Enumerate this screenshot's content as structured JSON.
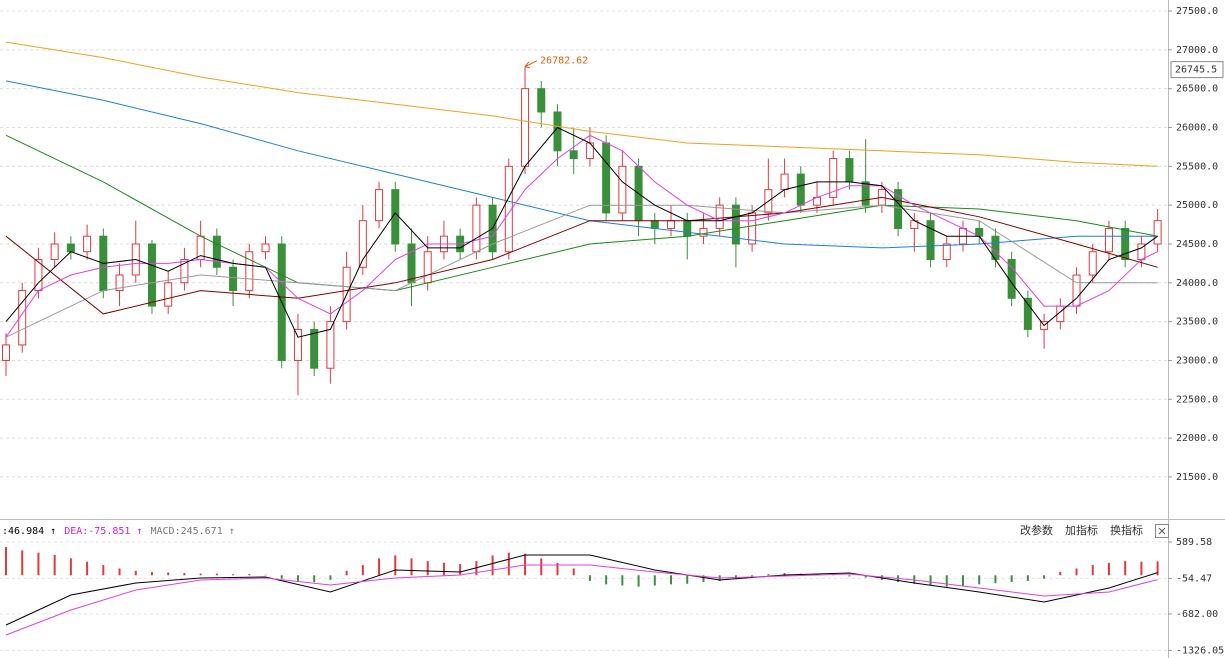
{
  "chart_data": [
    {
      "type": "candlestick",
      "ylim": [
        20971,
        27642
      ],
      "yticks": [
        {
          "value": 27500,
          "label": "27500.0"
        },
        {
          "value": 27000,
          "label": "27000.0"
        },
        {
          "value": 26500,
          "label": "26500.0"
        },
        {
          "value": 26000,
          "label": "26000.0"
        },
        {
          "value": 25500,
          "label": "25500.0"
        },
        {
          "value": 25000,
          "label": "25000.0"
        },
        {
          "value": 24500,
          "label": "24500.0"
        },
        {
          "value": 24000,
          "label": "24000.0"
        },
        {
          "value": 23500,
          "label": "23500.0"
        },
        {
          "value": 23000,
          "label": "23000.0"
        },
        {
          "value": 22500,
          "label": "22500.0"
        },
        {
          "value": 22000,
          "label": "22000.0"
        },
        {
          "value": 21500,
          "label": "21500.0"
        }
      ],
      "grid": true,
      "up_color": "#e0393e",
      "down_color": "#3a8f3a",
      "open": [
        23000,
        23200,
        23900,
        24300,
        24500,
        24400,
        24600,
        23900,
        24100,
        24500,
        23700,
        24000,
        24300,
        24600,
        24200,
        23900,
        24400,
        24500,
        23000,
        23400,
        22900,
        23500,
        24200,
        24800,
        25200,
        24500,
        24000,
        24400,
        24600,
        24400,
        25000,
        24400,
        25500,
        26500,
        26200,
        25700,
        25600,
        25800,
        24900,
        25500,
        24800,
        24700,
        24800,
        24600,
        24700,
        25000,
        24500,
        24900,
        25200,
        25400,
        25000,
        25100,
        25600,
        25300,
        25000,
        25200,
        24700,
        24800,
        24300,
        24500,
        24700,
        24600,
        24300,
        23800,
        23400,
        23500,
        23700,
        24100,
        24400,
        24700,
        24300,
        24500
      ],
      "high": [
        23350,
        24000,
        24450,
        24650,
        24600,
        24750,
        24700,
        24250,
        24800,
        24550,
        24150,
        24450,
        24800,
        24700,
        24300,
        24500,
        24600,
        24600,
        23600,
        23500,
        23700,
        24400,
        25000,
        25300,
        25300,
        24700,
        24600,
        24800,
        24700,
        25100,
        25100,
        25600,
        26782.62,
        26600,
        26300,
        26000,
        26000,
        25900,
        25700,
        25600,
        24900,
        25000,
        24900,
        24900,
        25100,
        25100,
        25000,
        25600,
        25600,
        25500,
        25300,
        25700,
        25700,
        25850,
        25300,
        25300,
        24900,
        24900,
        24600,
        24800,
        24800,
        24700,
        24400,
        23900,
        23600,
        23800,
        24200,
        24500,
        24800,
        24800,
        24600,
        24950
      ],
      "low": [
        22800,
        23100,
        23800,
        24200,
        24300,
        24300,
        23800,
        23700,
        24000,
        23600,
        23600,
        23900,
        24200,
        24100,
        23700,
        23800,
        24300,
        22900,
        22550,
        22800,
        22700,
        23400,
        24100,
        24700,
        24400,
        23700,
        23900,
        24300,
        24300,
        24300,
        24300,
        24300,
        25400,
        26000,
        25500,
        25400,
        25500,
        24800,
        24800,
        24600,
        24500,
        24600,
        24300,
        24500,
        24600,
        24200,
        24400,
        24800,
        25100,
        24900,
        24900,
        25000,
        25200,
        24900,
        24900,
        24600,
        24400,
        24200,
        24200,
        24400,
        24500,
        24200,
        23700,
        23300,
        23150,
        23400,
        23600,
        24000,
        24300,
        24200,
        24200,
        24400
      ],
      "close": [
        23200,
        23900,
        24300,
        24500,
        24400,
        24600,
        23900,
        24100,
        24500,
        23700,
        24000,
        24300,
        24600,
        24200,
        23900,
        24400,
        24500,
        23000,
        23400,
        22900,
        23500,
        24200,
        24800,
        25200,
        24500,
        24000,
        24400,
        24600,
        24400,
        25000,
        24400,
        25500,
        26500,
        26200,
        25700,
        25600,
        25800,
        24900,
        25500,
        24800,
        24700,
        24800,
        24600,
        24700,
        25000,
        24500,
        24900,
        25200,
        25400,
        25000,
        25100,
        25600,
        25300,
        25000,
        25200,
        24700,
        24800,
        24300,
        24500,
        24700,
        24600,
        24300,
        23800,
        23400,
        23500,
        23700,
        24100,
        24400,
        24700,
        24300,
        24500,
        24800
      ],
      "series": [
        {
          "color": "#f0a020",
          "x": [
            0,
            6,
            12,
            18,
            24,
            30,
            36,
            42,
            48,
            54,
            60,
            66,
            71
          ],
          "values": [
            27100,
            26900,
            26650,
            26450,
            26300,
            26150,
            25950,
            25800,
            25750,
            25700,
            25650,
            25550,
            25500
          ]
        },
        {
          "color": "#1f7fd8",
          "x": [
            0,
            6,
            12,
            18,
            24,
            30,
            36,
            42,
            48,
            54,
            60,
            66,
            71
          ],
          "values": [
            26600,
            26350,
            26050,
            25700,
            25400,
            25100,
            24800,
            24650,
            24500,
            24450,
            24500,
            24600,
            24600
          ]
        },
        {
          "color": "#1a8a1a",
          "x": [
            0,
            6,
            12,
            18,
            24,
            30,
            36,
            42,
            48,
            54,
            60,
            66,
            71
          ],
          "values": [
            25900,
            25300,
            24600,
            24000,
            23900,
            24200,
            24500,
            24600,
            24800,
            25000,
            24950,
            24800,
            24600
          ]
        },
        {
          "color": "#999999",
          "x": [
            0,
            6,
            12,
            18,
            24,
            30,
            36,
            42,
            48,
            54,
            60,
            66,
            71
          ],
          "values": [
            23300,
            23900,
            24100,
            24000,
            23900,
            24500,
            25000,
            25000,
            24900,
            25000,
            24800,
            24000,
            24000
          ]
        },
        {
          "color": "#800000",
          "x": [
            0,
            6,
            12,
            18,
            24,
            30,
            36,
            42,
            48,
            54,
            60,
            66,
            71
          ],
          "values": [
            24600,
            23600,
            23900,
            23800,
            24000,
            24300,
            24800,
            24800,
            24900,
            25100,
            24850,
            24500,
            24200
          ]
        },
        {
          "color": "#e040e0",
          "x": [
            0,
            2,
            4,
            6,
            8,
            10,
            12,
            14,
            16,
            18,
            20,
            22,
            24,
            26,
            28,
            30,
            32,
            34,
            36,
            38,
            40,
            42,
            44,
            46,
            48,
            50,
            52,
            54,
            56,
            58,
            60,
            62,
            64,
            66,
            68,
            70,
            71
          ],
          "values": [
            23300,
            23900,
            24100,
            24200,
            24250,
            24250,
            24300,
            24250,
            24200,
            23800,
            23600,
            23900,
            24300,
            24500,
            24500,
            24600,
            25200,
            25600,
            25900,
            25700,
            25300,
            25000,
            24800,
            24800,
            24900,
            25100,
            25250,
            25250,
            25000,
            24800,
            24600,
            24200,
            23700,
            23700,
            23900,
            24300,
            24400
          ]
        },
        {
          "color": "#000000",
          "x": [
            0,
            2,
            4,
            6,
            8,
            10,
            12,
            14,
            16,
            18,
            20,
            22,
            24,
            26,
            28,
            30,
            32,
            34,
            36,
            38,
            40,
            42,
            44,
            46,
            48,
            50,
            52,
            54,
            56,
            58,
            60,
            62,
            64,
            66,
            68,
            70,
            71
          ],
          "values": [
            23500,
            24000,
            24400,
            24250,
            24300,
            24150,
            24350,
            24250,
            24200,
            23300,
            23400,
            24300,
            24900,
            24450,
            24450,
            24700,
            25500,
            26000,
            25800,
            25300,
            25000,
            24800,
            24800,
            24900,
            25200,
            25300,
            25300,
            25250,
            24800,
            24600,
            24600,
            24000,
            23450,
            23800,
            24300,
            24450,
            24600
          ]
        }
      ],
      "annotation": {
        "text": "26782.62",
        "value": 26782.62,
        "color": "#e06010"
      },
      "price_marker": 26745.5
    },
    {
      "type": "macd",
      "ylim": [
        -1460,
        976
      ],
      "yticks": [
        589.58,
        -54.47,
        {
          "value": -682,
          "label": "-682.00"
        },
        -1326.05
      ],
      "up_color": "#e0393e",
      "down_color": "#3a8f3a",
      "values": [
        500,
        440,
        400,
        360,
        300,
        240,
        180,
        120,
        80,
        60,
        50,
        40,
        30,
        30,
        20,
        20,
        10,
        -60,
        -100,
        -120,
        -80,
        80,
        180,
        300,
        350,
        300,
        250,
        220,
        200,
        250,
        350,
        400,
        380,
        300,
        220,
        120,
        -100,
        -160,
        -180,
        -200,
        -180,
        -160,
        -150,
        -120,
        -100,
        -60,
        -20,
        20,
        40,
        30,
        20,
        20,
        -20,
        -40,
        -80,
        -120,
        -150,
        -180,
        -200,
        -180,
        -160,
        -140,
        -120,
        -100,
        -60,
        60,
        120,
        180,
        220,
        250,
        240,
        245.671
      ],
      "series": [
        {
          "color": "#000000",
          "x": [
            0,
            4,
            8,
            12,
            16,
            20,
            24,
            28,
            32,
            36,
            40,
            44,
            48,
            52,
            56,
            60,
            64,
            68,
            71
          ],
          "values": [
            -877,
            -348,
            -136,
            -48,
            -30,
            -295,
            94,
            58,
            358,
            358,
            94,
            -83,
            5,
            40,
            -136,
            -295,
            -471,
            -224,
            46.984
          ]
        },
        {
          "color": "#e040e0",
          "x": [
            0,
            4,
            8,
            12,
            16,
            20,
            24,
            28,
            32,
            36,
            40,
            44,
            48,
            52,
            56,
            60,
            64,
            68,
            71
          ],
          "values": [
            -1054,
            -613,
            -260,
            -83,
            -48,
            -172,
            -48,
            5,
            182,
            182,
            58,
            -48,
            -12,
            23,
            -83,
            -224,
            -365,
            -295,
            -75.851
          ]
        }
      ],
      "legend": [
        {
          "text": ":46.984 ↑",
          "color": "#000000"
        },
        {
          "text": "DEA:-75.851 ↑",
          "color": "#d020d0"
        },
        {
          "text": "MACD:245.671 ↑",
          "color": "#777777"
        }
      ]
    }
  ],
  "toolbar": {
    "buttons": [
      "改参数",
      "加指标",
      "换指标"
    ]
  }
}
